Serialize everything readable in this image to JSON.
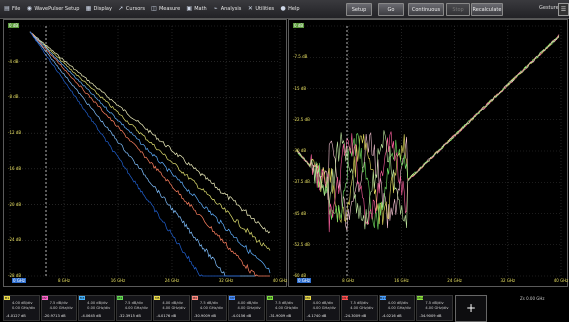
{
  "menu": {
    "items": [
      {
        "label": "File",
        "icon": "file-icon",
        "glyph": "▤"
      },
      {
        "label": "WavePulser Setup",
        "icon": "wavepulser-icon",
        "glyph": "◉"
      },
      {
        "label": "Display",
        "icon": "display-icon",
        "glyph": "▦"
      },
      {
        "label": "Cursors",
        "icon": "cursor-icon",
        "glyph": "➚"
      },
      {
        "label": "Measure",
        "icon": "measure-icon",
        "glyph": "◫"
      },
      {
        "label": "Math",
        "icon": "math-icon",
        "glyph": "▣"
      },
      {
        "label": "Analysis",
        "icon": "analysis-icon",
        "glyph": "⌁"
      },
      {
        "label": "Utilities",
        "icon": "utilities-icon",
        "glyph": "✕"
      },
      {
        "label": "Help",
        "icon": "help-icon",
        "glyph": "●"
      }
    ]
  },
  "controls": {
    "setup": "Setup",
    "go": "Go",
    "continuous": "Continuous",
    "stop": "Stop",
    "recalculate": "Recalculate"
  },
  "gesture": {
    "label": "Gesture",
    "icon": "gesture-icon",
    "glyph": "☰"
  },
  "left_plot": {
    "y_labels": [
      "0 dB",
      "-4 dB",
      "-8 dB",
      "-12 dB",
      "-16 dB",
      "-20 dB",
      "-24 dB",
      "-28 dB"
    ],
    "x_labels": [
      "0 GHz",
      "8 GHz",
      "16 GHz",
      "24 GHz",
      "32 GHz",
      "40 GHz"
    ]
  },
  "right_plot": {
    "y_labels": [
      "0 dB",
      "-7.5 dB",
      "-15 dB",
      "-22.5 dB",
      "-30 dB",
      "-37.5 dB",
      "-45 dB",
      "-52.5 dB",
      "-60 dB"
    ],
    "x_labels": [
      "0 GHz",
      "8 GHz",
      "16 GHz",
      "24 GHz",
      "32 GHz",
      "40 GHz"
    ]
  },
  "channels": [
    {
      "tag": "M1",
      "color": "#e8d84a",
      "l1": "4.00 dB/div",
      "l2": "0.00 GHz/div",
      "l3": "-4.0127 dB"
    },
    {
      "tag": "M2",
      "color": "#ff66cc",
      "l1": "7.5 dB/div",
      "l2": "4.00 GHz/div",
      "l3": "-20.9713 dB"
    },
    {
      "tag": "M3",
      "color": "#46b4ff",
      "l1": "4.00 dB/div",
      "l2": "0.00 GHz/div",
      "l3": "-4.0645 dB"
    },
    {
      "tag": "M4",
      "color": "#66dd55",
      "l1": "7.5 dB/div",
      "l2": "4.00 GHz/div",
      "l3": "-32.3915 dB"
    },
    {
      "tag": "M5",
      "color": "#e8d84a",
      "l1": "4.00 dB/div",
      "l2": "4.00 GHz/div",
      "l3": "-4.0176 dB"
    },
    {
      "tag": "M6",
      "color": "#ff8a80",
      "l1": "7.5 dB/div",
      "l2": "4.00 GHz/div",
      "l3": "-30.9009 dB"
    },
    {
      "tag": "M7",
      "color": "#4a90ff",
      "l1": "4.00 dB/div",
      "l2": "4.00 GHz/div",
      "l3": "-4.0156 dB"
    },
    {
      "tag": "M8",
      "color": "#7ee040",
      "l1": "7.5 dB/div",
      "l2": "4.00 GHz/div",
      "l3": "-31.9009 dB"
    },
    {
      "tag": "M9",
      "color": "#e8d84a",
      "l1": "4.00 dB/div",
      "l2": "4.00 GHz/div",
      "l3": "-4.1740 dB"
    },
    {
      "tag": "M10",
      "color": "#ff5050",
      "l1": "7.5 dB/div",
      "l2": "4.00 GHz/div",
      "l3": "-24.3009 dB"
    },
    {
      "tag": "M11",
      "color": "#4aa0ff",
      "l1": "4.00 dB/div",
      "l2": "4.00 GHz/div",
      "l3": "-4.0216 dB"
    },
    {
      "tag": "M12",
      "color": "#8be040",
      "l1": "7.5 dB/div",
      "l2": "4.00 GHz/div",
      "l3": "-34.9009 dB"
    }
  ],
  "add_button": "+",
  "timebase": "Zs  0.00 GHz",
  "colors": {
    "grid": "#3a3a3a",
    "axis_text": "#e8e060",
    "series": [
      "#f2f2c0",
      "#e0e070",
      "#60b0ff",
      "#ff8060",
      "#80c0ff",
      "#2060d0"
    ]
  }
}
